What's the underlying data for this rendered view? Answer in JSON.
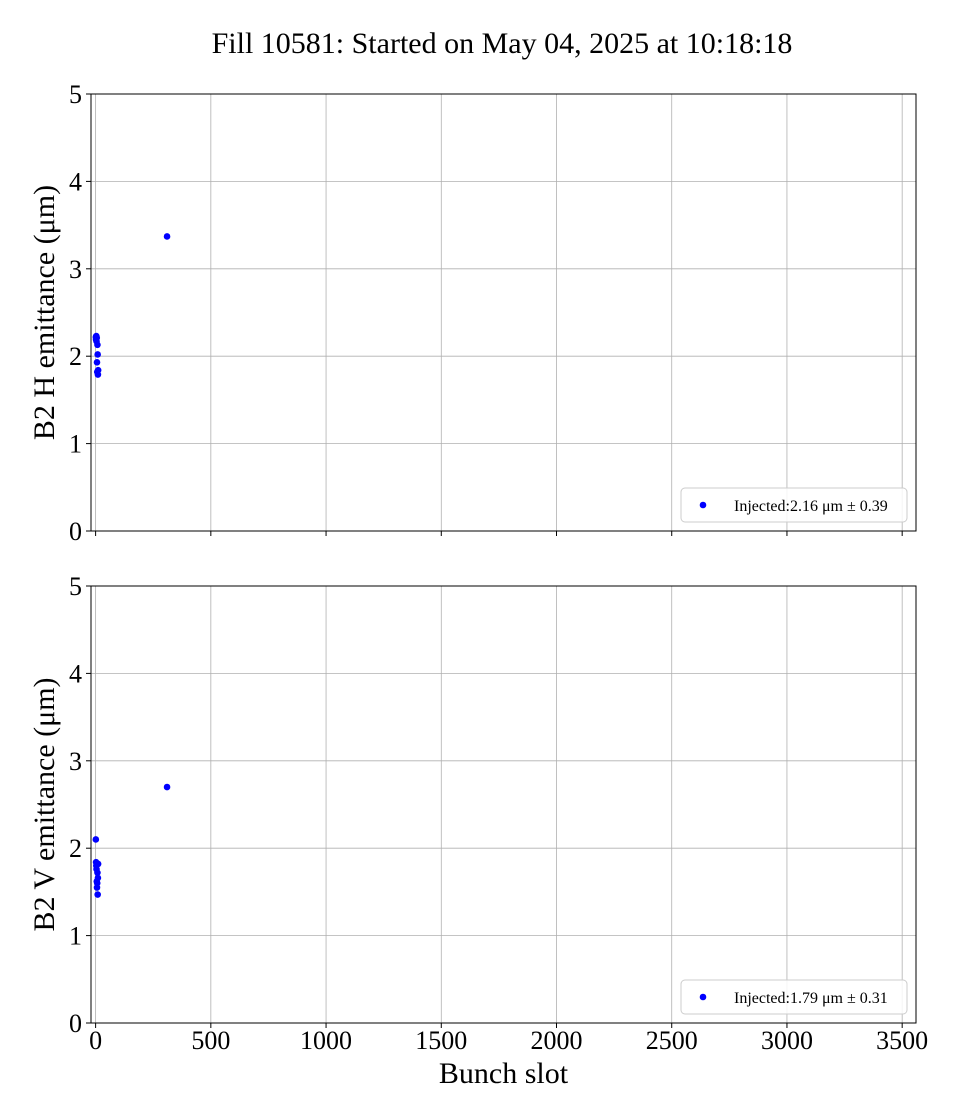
{
  "figure": {
    "title": "Fill 10581: Started on May 04, 2025 at 10:18:18"
  },
  "chart_data": [
    {
      "type": "scatter",
      "ylabel": "B2 H emittance (μm)",
      "xlabel": "",
      "xlim": [
        -20,
        3560
      ],
      "ylim": [
        0,
        5
      ],
      "xticks": [
        0,
        500,
        1000,
        1500,
        2000,
        2500,
        3000,
        3500
      ],
      "yticks": [
        0,
        1,
        2,
        3,
        4,
        5
      ],
      "show_xtick_labels": false,
      "grid": true,
      "legend": {
        "placement": "lower-right",
        "label": "Injected:2.16 μm ± 0.39"
      },
      "marker_color": "#0000ff",
      "series": [
        {
          "x": [
            1,
            2,
            3,
            4,
            5,
            6,
            7,
            8,
            9,
            10,
            11,
            310
          ],
          "y": [
            2.22,
            2.19,
            2.23,
            2.17,
            2.21,
            1.93,
            1.82,
            2.13,
            2.02,
            1.79,
            1.84,
            3.37
          ]
        }
      ]
    },
    {
      "type": "scatter",
      "ylabel": "B2 V emittance (μm)",
      "xlabel": "Bunch slot",
      "xlim": [
        -20,
        3560
      ],
      "ylim": [
        0,
        5
      ],
      "xticks": [
        0,
        500,
        1000,
        1500,
        2000,
        2500,
        3000,
        3500
      ],
      "yticks": [
        0,
        1,
        2,
        3,
        4,
        5
      ],
      "show_xtick_labels": true,
      "grid": true,
      "legend": {
        "placement": "lower-right",
        "label": "Injected:1.79 μm ± 0.31"
      },
      "marker_color": "#0000ff",
      "series": [
        {
          "x": [
            1,
            2,
            3,
            4,
            5,
            6,
            7,
            8,
            9,
            10,
            11,
            310
          ],
          "y": [
            2.1,
            1.84,
            1.8,
            1.76,
            1.62,
            1.55,
            1.6,
            1.72,
            1.47,
            1.66,
            1.82,
            2.7
          ]
        }
      ]
    }
  ]
}
